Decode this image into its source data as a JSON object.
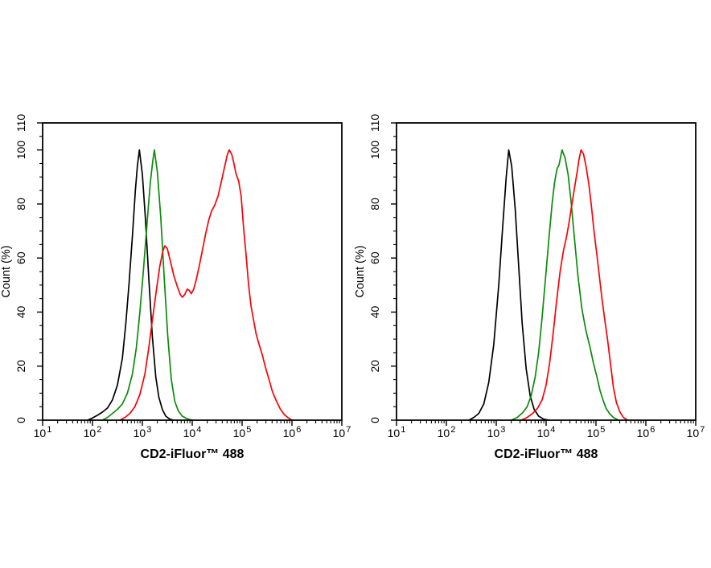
{
  "figure": {
    "background": "#ffffff",
    "panel_count": 2,
    "description": "Two flow cytometry overlay histograms"
  },
  "chart_data": [
    {
      "type": "line",
      "panel": "left",
      "xlabel": "CD2-iFluor™ 488",
      "ylabel": "Count  (%)",
      "x_scale": "log10",
      "x_tick_base": "10",
      "x_ticks_exponents": [
        1,
        2,
        3,
        4,
        5,
        6,
        7
      ],
      "xlim_log10": [
        1,
        7
      ],
      "ylim": [
        0,
        110
      ],
      "y_major_ticks": [
        0,
        20,
        40,
        60,
        80,
        100,
        110
      ],
      "y_minor_step": 5,
      "grid": false,
      "legend": "none",
      "series": [
        {
          "name": "black-curve",
          "color": "#000000",
          "points": [
            [
              1.9,
              0
            ],
            [
              2.0,
              0.8
            ],
            [
              2.1,
              1.8
            ],
            [
              2.2,
              3
            ],
            [
              2.3,
              4.5
            ],
            [
              2.4,
              7.5
            ],
            [
              2.5,
              13
            ],
            [
              2.6,
              23
            ],
            [
              2.67,
              36
            ],
            [
              2.73,
              50
            ],
            [
              2.8,
              68
            ],
            [
              2.86,
              85
            ],
            [
              2.9,
              94
            ],
            [
              2.94,
              100
            ],
            [
              3.0,
              91
            ],
            [
              3.06,
              75
            ],
            [
              3.13,
              52
            ],
            [
              3.2,
              31
            ],
            [
              3.27,
              16
            ],
            [
              3.33,
              8.5
            ],
            [
              3.4,
              4
            ],
            [
              3.47,
              1.5
            ],
            [
              3.55,
              0.4
            ],
            [
              3.62,
              0
            ]
          ]
        },
        {
          "name": "green-curve",
          "color": "#0a8c0a",
          "points": [
            [
              2.2,
              0
            ],
            [
              2.3,
              1
            ],
            [
              2.4,
              2.5
            ],
            [
              2.5,
              4
            ],
            [
              2.6,
              6
            ],
            [
              2.7,
              10
            ],
            [
              2.8,
              17
            ],
            [
              2.88,
              27
            ],
            [
              2.95,
              40
            ],
            [
              3.02,
              55
            ],
            [
              3.09,
              72
            ],
            [
              3.16,
              88
            ],
            [
              3.21,
              96
            ],
            [
              3.24,
              100
            ],
            [
              3.3,
              92
            ],
            [
              3.37,
              75
            ],
            [
              3.44,
              52
            ],
            [
              3.51,
              31
            ],
            [
              3.58,
              15
            ],
            [
              3.65,
              7
            ],
            [
              3.72,
              3.5
            ],
            [
              3.8,
              1.5
            ],
            [
              3.9,
              0.5
            ],
            [
              4.0,
              0
            ]
          ]
        },
        {
          "name": "red-curve",
          "color": "#fb0006",
          "points": [
            [
              2.55,
              0
            ],
            [
              2.65,
              1
            ],
            [
              2.75,
              2.5
            ],
            [
              2.85,
              5
            ],
            [
              2.95,
              9.5
            ],
            [
              3.05,
              17
            ],
            [
              3.13,
              27
            ],
            [
              3.2,
              37
            ],
            [
              3.28,
              48
            ],
            [
              3.35,
              57
            ],
            [
              3.41,
              62.5
            ],
            [
              3.45,
              64.5
            ],
            [
              3.5,
              63.5
            ],
            [
              3.56,
              59
            ],
            [
              3.63,
              53.5
            ],
            [
              3.7,
              49.5
            ],
            [
              3.76,
              46.5
            ],
            [
              3.8,
              45.5
            ],
            [
              3.85,
              46.5
            ],
            [
              3.9,
              48.5
            ],
            [
              3.94,
              48
            ],
            [
              3.98,
              46.8
            ],
            [
              4.03,
              48.5
            ],
            [
              4.08,
              52
            ],
            [
              4.14,
              57
            ],
            [
              4.2,
              62.5
            ],
            [
              4.27,
              69
            ],
            [
              4.33,
              74
            ],
            [
              4.39,
              77.5
            ],
            [
              4.45,
              79.5
            ],
            [
              4.52,
              83
            ],
            [
              4.58,
              88
            ],
            [
              4.64,
              93
            ],
            [
              4.7,
              98
            ],
            [
              4.74,
              100
            ],
            [
              4.79,
              98.5
            ],
            [
              4.83,
              95.5
            ],
            [
              4.88,
              91
            ],
            [
              4.93,
              88.5
            ],
            [
              4.98,
              83
            ],
            [
              5.03,
              71
            ],
            [
              5.08,
              61
            ],
            [
              5.13,
              50
            ],
            [
              5.18,
              42
            ],
            [
              5.23,
              37
            ],
            [
              5.28,
              32
            ],
            [
              5.34,
              28
            ],
            [
              5.4,
              24.5
            ],
            [
              5.47,
              19.5
            ],
            [
              5.54,
              15
            ],
            [
              5.61,
              10.5
            ],
            [
              5.69,
              7
            ],
            [
              5.77,
              4
            ],
            [
              5.85,
              2
            ],
            [
              5.93,
              0.8
            ],
            [
              6.0,
              0
            ]
          ]
        }
      ]
    },
    {
      "type": "line",
      "panel": "right",
      "xlabel": "CD2-iFluor™ 488",
      "ylabel": "Count  (%)",
      "x_scale": "log10",
      "x_tick_base": "10",
      "x_ticks_exponents": [
        1,
        2,
        3,
        4,
        5,
        6,
        7
      ],
      "xlim_log10": [
        1,
        7
      ],
      "ylim": [
        0,
        110
      ],
      "y_major_ticks": [
        0,
        20,
        40,
        60,
        80,
        100,
        110
      ],
      "y_minor_step": 5,
      "grid": false,
      "legend": "none",
      "series": [
        {
          "name": "black-curve",
          "color": "#000000",
          "points": [
            [
              2.45,
              0
            ],
            [
              2.55,
              1
            ],
            [
              2.65,
              2.5
            ],
            [
              2.75,
              6
            ],
            [
              2.85,
              14
            ],
            [
              2.95,
              28
            ],
            [
              3.05,
              50
            ],
            [
              3.13,
              72
            ],
            [
              3.2,
              90
            ],
            [
              3.25,
              100
            ],
            [
              3.31,
              94
            ],
            [
              3.38,
              78
            ],
            [
              3.45,
              57
            ],
            [
              3.52,
              36
            ],
            [
              3.6,
              19
            ],
            [
              3.68,
              9
            ],
            [
              3.76,
              4
            ],
            [
              3.85,
              1.5
            ],
            [
              3.95,
              0.4
            ],
            [
              4.05,
              0
            ]
          ]
        },
        {
          "name": "green-curve",
          "color": "#0a8c0a",
          "points": [
            [
              3.3,
              0
            ],
            [
              3.42,
              1
            ],
            [
              3.53,
              2.8
            ],
            [
              3.62,
              5
            ],
            [
              3.7,
              9
            ],
            [
              3.78,
              16
            ],
            [
              3.85,
              25
            ],
            [
              3.92,
              38
            ],
            [
              3.99,
              53
            ],
            [
              4.06,
              68
            ],
            [
              4.12,
              80
            ],
            [
              4.17,
              88
            ],
            [
              4.22,
              93
            ],
            [
              4.26,
              94.5
            ],
            [
              4.32,
              100
            ],
            [
              4.38,
              97
            ],
            [
              4.44,
              91
            ],
            [
              4.5,
              81
            ],
            [
              4.57,
              67
            ],
            [
              4.64,
              53
            ],
            [
              4.72,
              41
            ],
            [
              4.8,
              33
            ],
            [
              4.88,
              27
            ],
            [
              4.95,
              21
            ],
            [
              5.02,
              16
            ],
            [
              5.08,
              11
            ],
            [
              5.14,
              7.5
            ],
            [
              5.2,
              4.5
            ],
            [
              5.27,
              2.5
            ],
            [
              5.35,
              1
            ],
            [
              5.45,
              0
            ]
          ]
        },
        {
          "name": "red-curve",
          "color": "#fb0006",
          "points": [
            [
              3.5,
              0
            ],
            [
              3.62,
              1
            ],
            [
              3.73,
              2.5
            ],
            [
              3.83,
              4.5
            ],
            [
              3.92,
              7.5
            ],
            [
              4.0,
              13
            ],
            [
              4.07,
              21
            ],
            [
              4.14,
              32
            ],
            [
              4.21,
              44
            ],
            [
              4.28,
              55
            ],
            [
              4.35,
              63
            ],
            [
              4.4,
              67
            ],
            [
              4.45,
              72
            ],
            [
              4.51,
              79
            ],
            [
              4.57,
              86
            ],
            [
              4.62,
              91.5
            ],
            [
              4.66,
              96.5
            ],
            [
              4.7,
              100
            ],
            [
              4.75,
              98.5
            ],
            [
              4.8,
              94
            ],
            [
              4.86,
              87
            ],
            [
              4.91,
              79
            ],
            [
              4.96,
              70
            ],
            [
              5.02,
              61
            ],
            [
              5.07,
              53
            ],
            [
              5.12,
              45
            ],
            [
              5.17,
              38
            ],
            [
              5.23,
              30
            ],
            [
              5.29,
              21
            ],
            [
              5.35,
              12
            ],
            [
              5.41,
              6.5
            ],
            [
              5.48,
              3
            ],
            [
              5.55,
              1
            ],
            [
              5.63,
              0
            ]
          ]
        }
      ]
    }
  ]
}
